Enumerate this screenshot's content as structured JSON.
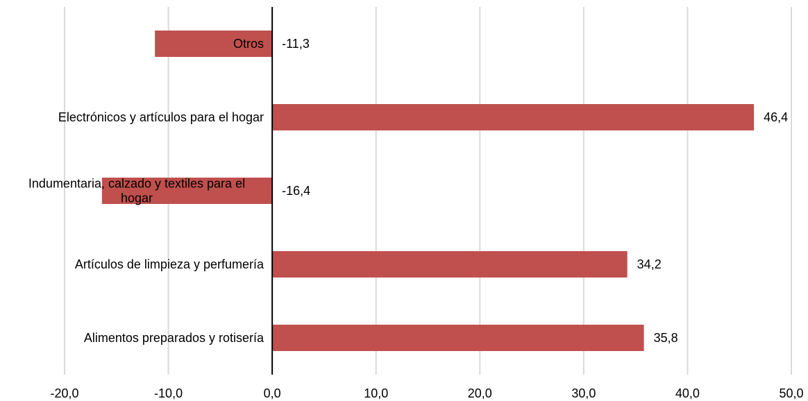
{
  "chart_data": {
    "type": "bar",
    "orientation": "horizontal",
    "title": "",
    "xlabel": "",
    "ylabel": "",
    "xlim": [
      -20,
      50
    ],
    "x_ticks": [
      -20,
      -10,
      0,
      10,
      20,
      30,
      40,
      50
    ],
    "x_tick_labels": [
      "-20,0",
      "-10,0",
      "0,0",
      "10,0",
      "20,0",
      "30,0",
      "40,0",
      "50,0"
    ],
    "grid": true,
    "legend": "none",
    "bar_color": "#c0504d",
    "categories": [
      "Otros",
      "Electrónicos y artículos para el hogar",
      "Indumentaria, calzado y textiles para el hogar",
      "Artículos de limpieza y perfumería",
      "Alimentos preparados y rotisería"
    ],
    "category_label_lines": [
      [
        "Otros"
      ],
      [
        "Electrónicos y artículos para el hogar"
      ],
      [
        "Indumentaria, calzado y textiles para el",
        "hogar"
      ],
      [
        "Artículos de limpieza y perfumería"
      ],
      [
        "Alimentos preparados y rotisería"
      ]
    ],
    "values": [
      -11.3,
      46.4,
      -16.4,
      34.2,
      35.8
    ],
    "data_labels": [
      "-11,3",
      "46,4",
      "-16,4",
      "34,2",
      "35,8"
    ]
  }
}
